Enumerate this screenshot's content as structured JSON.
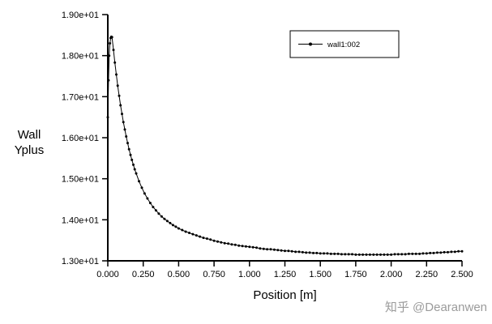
{
  "figure": {
    "watermark": "知乎 @Dearanwen",
    "background": "#ffffff"
  },
  "chart_data": {
    "type": "line",
    "title": "",
    "xlabel": "Position [m]",
    "ylabel": "Wall\nYplus",
    "xlim": [
      0,
      2.5
    ],
    "ylim": [
      13.0,
      19.0
    ],
    "grid": false,
    "legend_position": "top-right",
    "axis_color": "#000000",
    "xticks": {
      "values": [
        0,
        0.25,
        0.5,
        0.75,
        1.0,
        1.25,
        1.5,
        1.75,
        2.0,
        2.25,
        2.5
      ],
      "labels": [
        "0.000",
        "0.250",
        "0.500",
        "0.750",
        "1.000",
        "1.250",
        "1.500",
        "1.750",
        "2.000",
        "2.250",
        "2.500"
      ]
    },
    "yticks": {
      "values": [
        13,
        14,
        15,
        16,
        17,
        18,
        19
      ],
      "labels": [
        "1.30e+01",
        "1.40e+01",
        "1.50e+01",
        "1.60e+01",
        "1.70e+01",
        "1.80e+01",
        "1.90e+01"
      ]
    },
    "series": [
      {
        "name": "wall1:002",
        "color": "#000000",
        "marker": "filled-circle",
        "points": [
          [
            0.0,
            16.5
          ],
          [
            0.005,
            17.4
          ],
          [
            0.01,
            18.0
          ],
          [
            0.015,
            18.3
          ],
          [
            0.02,
            18.43
          ],
          [
            0.025,
            18.46
          ],
          [
            0.03,
            18.45
          ],
          [
            0.04,
            18.14
          ],
          [
            0.05,
            17.83
          ],
          [
            0.06,
            17.54
          ],
          [
            0.07,
            17.27
          ],
          [
            0.08,
            17.02
          ],
          [
            0.09,
            16.79
          ],
          [
            0.1,
            16.58
          ],
          [
            0.11,
            16.38
          ],
          [
            0.12,
            16.2
          ],
          [
            0.13,
            16.03
          ],
          [
            0.14,
            15.87
          ],
          [
            0.15,
            15.72
          ],
          [
            0.16,
            15.58
          ],
          [
            0.17,
            15.46
          ],
          [
            0.18,
            15.34
          ],
          [
            0.19,
            15.23
          ],
          [
            0.2,
            15.13
          ],
          [
            0.22,
            14.94
          ],
          [
            0.24,
            14.78
          ],
          [
            0.26,
            14.64
          ],
          [
            0.28,
            14.52
          ],
          [
            0.3,
            14.41
          ],
          [
            0.32,
            14.31
          ],
          [
            0.34,
            14.23
          ],
          [
            0.36,
            14.15
          ],
          [
            0.38,
            14.08
          ],
          [
            0.4,
            14.02
          ],
          [
            0.42,
            13.97
          ],
          [
            0.44,
            13.92
          ],
          [
            0.46,
            13.87
          ],
          [
            0.48,
            13.83
          ],
          [
            0.5,
            13.79
          ],
          [
            0.525,
            13.75
          ],
          [
            0.55,
            13.71
          ],
          [
            0.575,
            13.68
          ],
          [
            0.6,
            13.65
          ],
          [
            0.625,
            13.62
          ],
          [
            0.65,
            13.59
          ],
          [
            0.675,
            13.56
          ],
          [
            0.7,
            13.54
          ],
          [
            0.725,
            13.52
          ],
          [
            0.75,
            13.49
          ],
          [
            0.775,
            13.47
          ],
          [
            0.8,
            13.45
          ],
          [
            0.825,
            13.43
          ],
          [
            0.85,
            13.42
          ],
          [
            0.875,
            13.4
          ],
          [
            0.9,
            13.39
          ],
          [
            0.925,
            13.37
          ],
          [
            0.95,
            13.36
          ],
          [
            0.975,
            13.35
          ],
          [
            1.0,
            13.34
          ],
          [
            1.025,
            13.33
          ],
          [
            1.05,
            13.32
          ],
          [
            1.075,
            13.3
          ],
          [
            1.1,
            13.29
          ],
          [
            1.125,
            13.28
          ],
          [
            1.15,
            13.28
          ],
          [
            1.175,
            13.27
          ],
          [
            1.2,
            13.26
          ],
          [
            1.225,
            13.25
          ],
          [
            1.25,
            13.24
          ],
          [
            1.275,
            13.24
          ],
          [
            1.3,
            13.23
          ],
          [
            1.325,
            13.22
          ],
          [
            1.35,
            13.22
          ],
          [
            1.375,
            13.21
          ],
          [
            1.4,
            13.2
          ],
          [
            1.425,
            13.2
          ],
          [
            1.45,
            13.19
          ],
          [
            1.475,
            13.19
          ],
          [
            1.5,
            13.18
          ],
          [
            1.525,
            13.18
          ],
          [
            1.55,
            13.18
          ],
          [
            1.575,
            13.17
          ],
          [
            1.6,
            13.17
          ],
          [
            1.625,
            13.17
          ],
          [
            1.65,
            13.16
          ],
          [
            1.675,
            13.16
          ],
          [
            1.7,
            13.16
          ],
          [
            1.725,
            13.16
          ],
          [
            1.75,
            13.15
          ],
          [
            1.775,
            13.15
          ],
          [
            1.8,
            13.15
          ],
          [
            1.825,
            13.15
          ],
          [
            1.85,
            13.15
          ],
          [
            1.875,
            13.15
          ],
          [
            1.9,
            13.15
          ],
          [
            1.925,
            13.15
          ],
          [
            1.95,
            13.15
          ],
          [
            1.975,
            13.15
          ],
          [
            2.0,
            13.15
          ],
          [
            2.025,
            13.16
          ],
          [
            2.05,
            13.16
          ],
          [
            2.075,
            13.16
          ],
          [
            2.1,
            13.16
          ],
          [
            2.125,
            13.17
          ],
          [
            2.15,
            13.17
          ],
          [
            2.175,
            13.17
          ],
          [
            2.2,
            13.17
          ],
          [
            2.225,
            13.18
          ],
          [
            2.25,
            13.18
          ],
          [
            2.275,
            13.19
          ],
          [
            2.3,
            13.19
          ],
          [
            2.325,
            13.2
          ],
          [
            2.35,
            13.2
          ],
          [
            2.375,
            13.21
          ],
          [
            2.4,
            13.21
          ],
          [
            2.425,
            13.22
          ],
          [
            2.45,
            13.22
          ],
          [
            2.475,
            13.23
          ],
          [
            2.5,
            13.23
          ]
        ]
      }
    ]
  }
}
